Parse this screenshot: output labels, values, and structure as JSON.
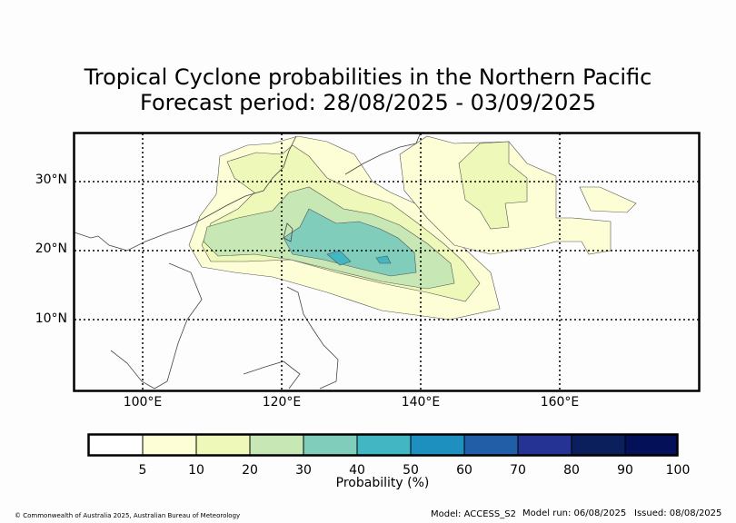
{
  "title": {
    "line1": "Tropical Cyclone probabilities in the Northern Pacific",
    "line2": "Forecast period: 28/08/2025 - 03/09/2025"
  },
  "axes": {
    "lat_labels": [
      "30°N",
      "20°N",
      "10°N"
    ],
    "lon_labels": [
      "100°E",
      "120°E",
      "140°E",
      "160°E"
    ]
  },
  "colorbar": {
    "label": "Probability (%)",
    "ticks": [
      "5",
      "10",
      "20",
      "30",
      "40",
      "50",
      "60",
      "70",
      "80",
      "90",
      "100"
    ],
    "colors": [
      "#ffffff",
      "#fdfed5",
      "#eef8b8",
      "#c7e7b4",
      "#80cdbb",
      "#43b6c4",
      "#1e90c0",
      "#225ea8",
      "#253494",
      "#0a1f5c",
      "#041058"
    ]
  },
  "footer": {
    "copyright": "© Commonwealth of Australia 2025, Australian Bureau of Meteorology",
    "model": "Model: ACCESS_S2",
    "model_run": "Model run: 06/08/2025",
    "issued": "Issued: 08/08/2025"
  }
}
